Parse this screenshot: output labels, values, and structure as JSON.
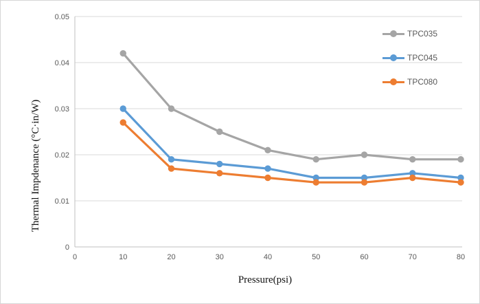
{
  "chart_data": {
    "type": "line",
    "title": "",
    "xlabel": "Pressure(psi)",
    "ylabel": "Thermal Impdenance (°C·in/W)",
    "x": [
      10,
      20,
      30,
      40,
      50,
      60,
      70,
      80
    ],
    "series": [
      {
        "name": "TPC035",
        "color": "#A5A5A5",
        "values": [
          0.042,
          0.03,
          0.025,
          0.021,
          0.019,
          0.02,
          0.019,
          0.019
        ]
      },
      {
        "name": "TPC045",
        "color": "#5B9BD5",
        "values": [
          0.03,
          0.019,
          0.018,
          0.017,
          0.015,
          0.015,
          0.016,
          0.015
        ]
      },
      {
        "name": "TPC080",
        "color": "#ED7D31",
        "values": [
          0.027,
          0.017,
          0.016,
          0.015,
          0.014,
          0.014,
          0.015,
          0.014
        ]
      }
    ],
    "xlim": [
      0,
      80
    ],
    "ylim": [
      0,
      0.05
    ],
    "xticks": [
      0,
      10,
      20,
      30,
      40,
      50,
      60,
      70,
      80
    ],
    "xtick_labels": [
      "0",
      "10",
      "20",
      "30",
      "40",
      "50",
      "60",
      "70",
      "80"
    ],
    "yticks": [
      0,
      0.01,
      0.02,
      0.03,
      0.04,
      0.05
    ],
    "ytick_labels": [
      "0",
      "0.01",
      "0.02",
      "0.03",
      "0.04",
      "0.05"
    ],
    "grid": "horizontal",
    "gridline_color": "#d9d9d9",
    "axis_line_color": "#bfbfbf",
    "tick_label_color": "#595959",
    "legend_position": "top-right",
    "marker": "circle"
  }
}
